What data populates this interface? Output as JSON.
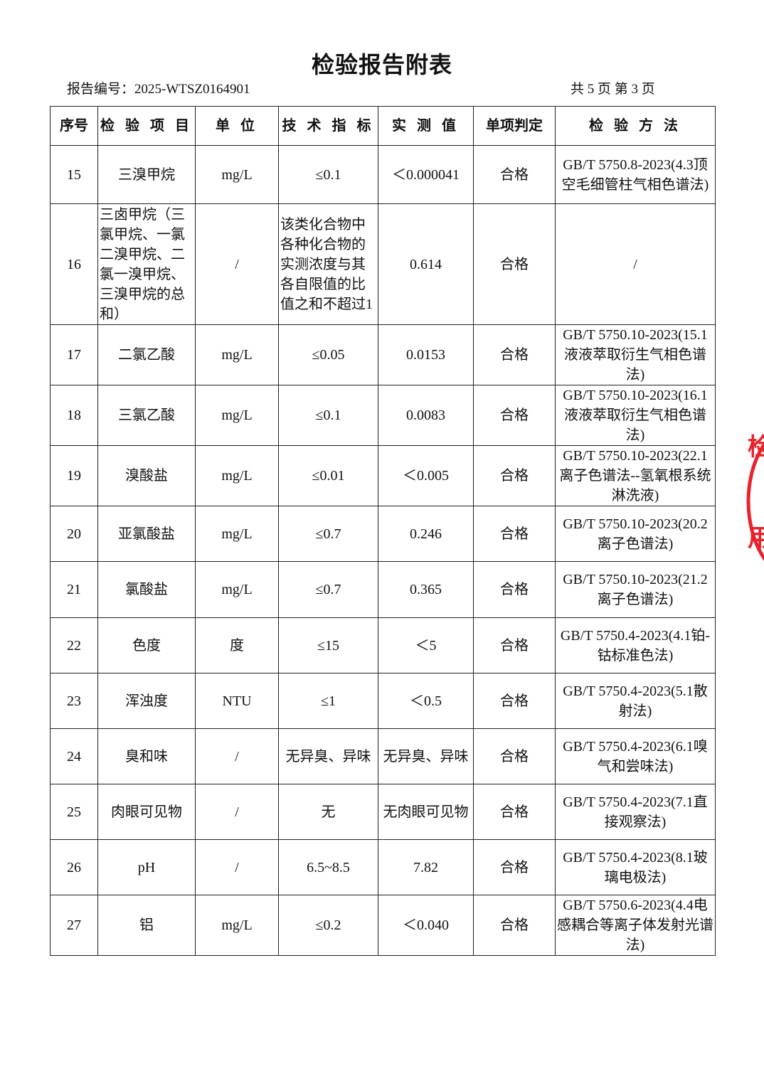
{
  "title": "检验报告附表",
  "report_no": "报告编号：2025-WTSZ0164901",
  "pages": "共 5 页  第 3 页",
  "headers": [
    "序号",
    "检 验 项 目",
    "单 位",
    "技 术 指 标",
    "实 测 值",
    "单项判定",
    "检 验 方 法"
  ],
  "rows": [
    [
      "15",
      "三溴甲烷",
      "mg/L",
      "≤0.1",
      "＜0.000041",
      "合格",
      "GB/T 5750.8-2023(4.3顶空毛细管柱气相色谱法)"
    ],
    [
      "16",
      "三卤甲烷（三氯甲烷、一氯二溴甲烷、二氯一溴甲烷、三溴甲烷的总和）",
      "/",
      "该类化合物中各种化合物的实测浓度与其各自限值的比值之和不超过1",
      "0.614",
      "合格",
      "/"
    ],
    [
      "17",
      "二氯乙酸",
      "mg/L",
      "≤0.05",
      "0.0153",
      "合格",
      "GB/T 5750.10-2023(15.1液液萃取衍生气相色谱法)"
    ],
    [
      "18",
      "三氯乙酸",
      "mg/L",
      "≤0.1",
      "0.0083",
      "合格",
      "GB/T 5750.10-2023(16.1液液萃取衍生气相色谱法)"
    ],
    [
      "19",
      "溴酸盐",
      "mg/L",
      "≤0.01",
      "＜0.005",
      "合格",
      "GB/T 5750.10-2023(22.1离子色谱法--氢氧根系统淋洗液)"
    ],
    [
      "20",
      "亚氯酸盐",
      "mg/L",
      "≤0.7",
      "0.246",
      "合格",
      "GB/T 5750.10-2023(20.2离子色谱法)"
    ],
    [
      "21",
      "氯酸盐",
      "mg/L",
      "≤0.7",
      "0.365",
      "合格",
      "GB/T 5750.10-2023(21.2离子色谱法)"
    ],
    [
      "22",
      "色度",
      "度",
      "≤15",
      "＜5",
      "合格",
      "GB/T 5750.4-2023(4.1铂-钴标准色法)"
    ],
    [
      "23",
      "浑浊度",
      "NTU",
      "≤1",
      "＜0.5",
      "合格",
      "GB/T 5750.4-2023(5.1散射法)"
    ],
    [
      "24",
      "臭和味",
      "/",
      "无异臭、异味",
      "无异臭、异味",
      "合格",
      "GB/T 5750.4-2023(6.1嗅气和尝味法)"
    ],
    [
      "25",
      "肉眼可见物",
      "/",
      "无",
      "无肉眼可见物",
      "合格",
      "GB/T 5750.4-2023(7.1直接观察法)"
    ],
    [
      "26",
      "pH",
      "/",
      "6.5~8.5",
      "7.82",
      "合格",
      "GB/T 5750.4-2023(8.1玻璃电极法)"
    ],
    [
      "27",
      "铝",
      "mg/L",
      "≤0.2",
      "＜0.040",
      "合格",
      "GB/T 5750.6-2023(4.4电感耦合等离子体发射光谱法)"
    ]
  ],
  "stamp": {
    "text_top": "检",
    "text_bottom": "用",
    "color": "#e8232b"
  }
}
